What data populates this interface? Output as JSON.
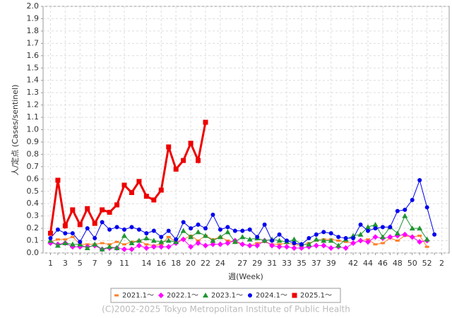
{
  "chart_data": {
    "type": "line",
    "xlabel": "週(Week)",
    "ylabel": "人/定点 (Cases/sentinel)",
    "footer": "(C)2002-2025 Tokyo Metropolitan Institute of Public Health",
    "categories": [
      "1",
      null,
      "3",
      null,
      "5",
      null,
      "7",
      null,
      "9",
      null,
      "11",
      null,
      null,
      "14",
      null,
      "16",
      null,
      "18",
      null,
      "20",
      null,
      "22",
      null,
      "24",
      null,
      null,
      "27",
      null,
      "29",
      null,
      "31",
      null,
      "33",
      null,
      "35",
      null,
      "37",
      null,
      "39",
      null,
      null,
      "42",
      null,
      "44",
      null,
      "46",
      null,
      "48",
      null,
      "50",
      null,
      "52",
      null,
      "2"
    ],
    "ylim": [
      0,
      2
    ],
    "yticks": [
      {
        "value": 0,
        "label": "0.0"
      },
      0.1,
      0.2,
      0.3,
      0.4,
      0.5,
      0.6,
      0.7,
      0.8,
      0.9,
      {
        "value": 1,
        "label": "1.0"
      },
      1.1,
      1.2,
      1.3,
      1.4,
      1.5,
      1.6,
      1.7,
      1.8,
      1.9,
      {
        "value": 2,
        "label": "2.0"
      }
    ],
    "grid": true,
    "legend": "bottom",
    "series": [
      {
        "name": "2021.1～",
        "color": "#ff7f27",
        "marker": "dash",
        "values": [
          0.09,
          0.11,
          0.11,
          0.13,
          0.07,
          0.07,
          0.07,
          0.08,
          0.07,
          0.09,
          0.07,
          0.09,
          0.1,
          0.07,
          0.06,
          0.07,
          0.13,
          0.09,
          0.11,
          0.14,
          0.1,
          0.14,
          0.11,
          0.13,
          0.1,
          0.09,
          0.07,
          0.06,
          0.08,
          0.09,
          0.07,
          0.07,
          0.08,
          0.07,
          0.06,
          0.08,
          0.1,
          0.11,
          0.11,
          0.1,
          0.09,
          0.08,
          0.1,
          0.11,
          0.07,
          0.08,
          0.12,
          0.1,
          0.14,
          0.13,
          0.14,
          0.05,
          null,
          null
        ]
      },
      {
        "name": "2022.1～",
        "color": "#ff00ff",
        "marker": "diamond",
        "values": [
          0.08,
          0.07,
          0.08,
          0.05,
          0.05,
          0.05,
          0.06,
          0.03,
          0.04,
          0.04,
          0.03,
          0.03,
          0.06,
          0.04,
          0.05,
          0.05,
          0.05,
          0.08,
          0.11,
          0.05,
          0.08,
          0.06,
          0.07,
          0.07,
          0.08,
          0.1,
          0.07,
          0.06,
          0.06,
          0.1,
          0.06,
          0.05,
          0.05,
          0.04,
          0.04,
          0.05,
          0.06,
          0.06,
          0.04,
          0.05,
          0.04,
          0.08,
          0.1,
          0.09,
          0.13,
          0.12,
          0.13,
          0.14,
          0.15,
          0.13,
          0.09,
          0.1,
          null,
          null
        ]
      },
      {
        "name": "2023.1～",
        "color": "#1e9632",
        "marker": "triangle",
        "values": [
          0.1,
          0.06,
          0.08,
          0.07,
          0.07,
          0.04,
          0.07,
          0.03,
          0.05,
          0.04,
          0.14,
          0.08,
          0.1,
          0.12,
          0.1,
          0.09,
          0.1,
          0.09,
          0.18,
          0.13,
          0.17,
          0.14,
          0.1,
          0.13,
          0.17,
          0.09,
          0.13,
          0.11,
          0.12,
          0.1,
          0.11,
          0.1,
          0.09,
          0.11,
          0.07,
          0.07,
          0.11,
          0.1,
          0.1,
          0.06,
          0.11,
          0.14,
          0.15,
          0.21,
          0.23,
          0.13,
          0.21,
          0.16,
          0.3,
          0.2,
          0.2,
          0.11,
          null,
          null
        ]
      },
      {
        "name": "2024.1～",
        "color": "#0000ee",
        "marker": "circle",
        "values": [
          0.12,
          0.19,
          0.16,
          0.16,
          0.09,
          0.2,
          0.12,
          0.25,
          0.19,
          0.21,
          0.19,
          0.21,
          0.19,
          0.16,
          0.18,
          0.13,
          0.18,
          0.11,
          0.25,
          0.2,
          0.23,
          0.2,
          0.31,
          0.19,
          0.21,
          0.18,
          0.18,
          0.19,
          0.13,
          0.23,
          0.1,
          0.15,
          0.1,
          0.08,
          0.07,
          0.12,
          0.15,
          0.17,
          0.16,
          0.13,
          0.12,
          0.12,
          0.23,
          0.18,
          0.2,
          0.21,
          0.21,
          0.34,
          0.35,
          0.43,
          0.59,
          0.37,
          0.15,
          null
        ]
      },
      {
        "name": "2025.1～",
        "color": "#ee0000",
        "marker": "square",
        "width": 3,
        "values": [
          0.16,
          0.59,
          0.22,
          0.35,
          0.23,
          0.36,
          0.24,
          0.35,
          0.33,
          0.39,
          0.55,
          0.49,
          0.58,
          0.46,
          0.43,
          0.51,
          0.86,
          0.68,
          0.75,
          0.89,
          0.75,
          1.06,
          null,
          null,
          null,
          null,
          null,
          null,
          null,
          null,
          null,
          null,
          null,
          null,
          null,
          null,
          null,
          null,
          null,
          null,
          null,
          null,
          null,
          null,
          null,
          null,
          null,
          null,
          null,
          null,
          null,
          null,
          null,
          null
        ]
      }
    ]
  }
}
